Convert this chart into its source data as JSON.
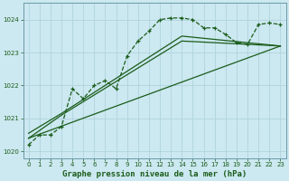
{
  "title": "Graphe pression niveau de la mer (hPa)",
  "background_color": "#cce8f0",
  "grid_color": "#b0d4de",
  "line_color": "#1a5c1a",
  "xlim": [
    -0.5,
    23.5
  ],
  "ylim": [
    1019.8,
    1024.5
  ],
  "yticks": [
    1020,
    1021,
    1022,
    1023,
    1024
  ],
  "xticks": [
    0,
    1,
    2,
    3,
    4,
    5,
    6,
    7,
    8,
    9,
    10,
    11,
    12,
    13,
    14,
    15,
    16,
    17,
    18,
    19,
    20,
    21,
    22,
    23
  ],
  "series1_x": [
    0,
    1,
    2,
    3,
    4,
    5,
    6,
    7,
    8,
    9,
    10,
    11,
    12,
    13,
    14,
    15,
    16,
    17,
    18,
    19,
    20,
    21,
    22,
    23
  ],
  "series1_y": [
    1020.2,
    1020.5,
    1020.5,
    1020.75,
    1021.9,
    1021.6,
    1022.0,
    1022.15,
    1021.9,
    1022.9,
    1023.35,
    1023.65,
    1024.0,
    1024.05,
    1024.05,
    1024.0,
    1023.75,
    1023.75,
    1023.55,
    1023.3,
    1023.25,
    1023.85,
    1023.9,
    1023.85
  ],
  "series2_x": [
    0,
    23
  ],
  "series2_y": [
    1020.4,
    1023.2
  ],
  "series3_x": [
    0,
    3,
    14,
    23
  ],
  "series3_y": [
    1020.4,
    1021.1,
    1023.35,
    1023.2
  ],
  "series4_x": [
    0,
    3,
    14,
    23
  ],
  "series4_y": [
    1020.55,
    1021.15,
    1023.5,
    1023.2
  ]
}
